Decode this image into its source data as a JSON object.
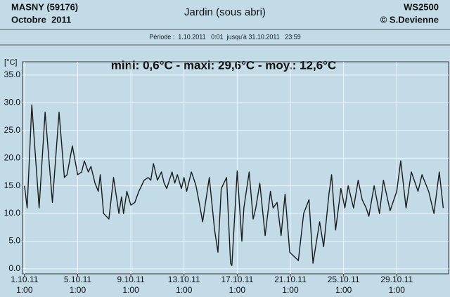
{
  "chart_data": {
    "type": "line",
    "station": "MASNY (59176)",
    "month": "Octobre  2011",
    "title": "Jardin (sous abri)",
    "device": "WS2500",
    "author": "© S.Devienne",
    "period": "Période :  1.10.2011   0:01  jusqu'à 31.10.2011   23:59",
    "y_label": "[°C]",
    "annotation": "mini: 0,6°C - maxi: 29,6°C - moy.: 12,6°C",
    "grid": true,
    "xlim": [
      0.85,
      32.9
    ],
    "ylim": [
      -0.9,
      37.4
    ],
    "xticks": [
      {
        "value": 1,
        "label": "1.10.11\n1:00"
      },
      {
        "value": 5,
        "label": "5.10.11\n1:00"
      },
      {
        "value": 9,
        "label": "9.10.11\n1:00"
      },
      {
        "value": 13,
        "label": "13.10.11\n1:00"
      },
      {
        "value": 17,
        "label": "17.10.11\n1:00"
      },
      {
        "value": 21,
        "label": "21.10.11\n1:00"
      },
      {
        "value": 25,
        "label": "25.10.11\n1:00"
      },
      {
        "value": 29,
        "label": "29.10.11\n1:00"
      }
    ],
    "yticks": [
      {
        "value": 0,
        "label": "0.0"
      },
      {
        "value": 5,
        "label": "5.0"
      },
      {
        "value": 10,
        "label": "10.0"
      },
      {
        "value": 15,
        "label": "15.0"
      },
      {
        "value": 20,
        "label": "20.0"
      },
      {
        "value": 25,
        "label": "25.0"
      },
      {
        "value": 30,
        "label": "30.0"
      },
      {
        "value": 35,
        "label": "35.0"
      }
    ],
    "x": [
      1.0,
      1.2,
      1.55,
      2.1,
      2.55,
      3.1,
      3.6,
      4.0,
      4.2,
      4.6,
      5.0,
      5.3,
      5.5,
      5.8,
      6.0,
      6.3,
      6.55,
      6.7,
      6.95,
      7.35,
      7.7,
      8.1,
      8.3,
      8.45,
      8.7,
      9.0,
      9.3,
      9.6,
      10.0,
      10.3,
      10.5,
      10.7,
      11.0,
      11.3,
      11.5,
      11.7,
      12.1,
      12.3,
      12.5,
      12.8,
      13.0,
      13.2,
      13.55,
      13.7,
      13.9,
      14.1,
      14.4,
      14.9,
      15.3,
      15.55,
      15.8,
      16.2,
      16.5,
      16.6,
      17.0,
      17.35,
      17.5,
      17.9,
      18.2,
      18.4,
      18.7,
      19.1,
      19.3,
      19.5,
      19.7,
      20.0,
      20.3,
      20.6,
      20.95,
      21.6,
      22.0,
      22.4,
      22.7,
      23.2,
      23.5,
      23.9,
      24.1,
      24.4,
      24.8,
      25.1,
      25.35,
      25.75,
      26.1,
      26.4,
      26.7,
      26.9,
      27.3,
      27.7,
      28.0,
      28.5,
      29.0,
      29.3,
      29.7,
      30.1,
      30.6,
      30.9,
      31.4,
      31.8,
      32.2,
      32.5
    ],
    "series": [
      {
        "color": "#1b1b1b",
        "values": [
          15,
          11,
          29.6,
          11,
          28.3,
          12,
          28.3,
          16.5,
          17,
          22.2,
          17,
          17.5,
          19.5,
          17.5,
          18.5,
          15.5,
          14,
          17,
          10,
          9,
          16.5,
          10,
          13,
          10,
          14,
          11.5,
          12,
          14,
          16,
          16.5,
          16,
          19,
          16,
          17.5,
          15.5,
          14.5,
          17.5,
          15.5,
          17,
          14.5,
          16.5,
          14,
          17.5,
          16.5,
          15,
          12.5,
          8.5,
          16.5,
          7,
          3,
          14.5,
          16.5,
          1,
          0.6,
          17.7,
          5,
          11,
          17.5,
          9,
          11,
          15.5,
          6,
          10,
          14,
          11,
          12,
          6,
          13.5,
          3,
          1.5,
          10,
          12.5,
          1,
          8.5,
          4,
          13.5,
          17,
          7,
          14.5,
          11,
          15,
          11,
          16,
          12.5,
          11,
          9.5,
          15,
          10,
          16,
          10.5,
          14,
          19.5,
          11,
          17.5,
          14,
          17,
          14,
          10,
          17.5,
          11
        ]
      }
    ]
  }
}
